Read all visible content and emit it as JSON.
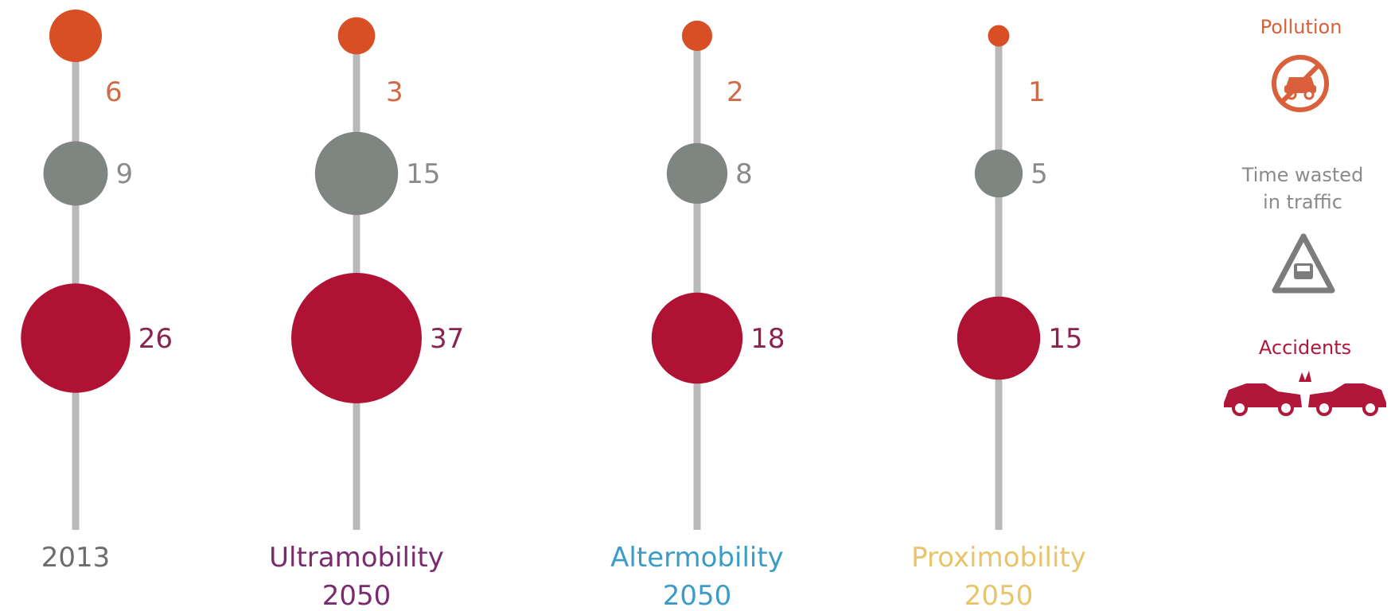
{
  "chart_data": {
    "type": "bubble",
    "metrics": [
      "Pollution",
      "Time wasted in traffic",
      "Accidents"
    ],
    "scenarios": [
      {
        "label_line1": "2013",
        "label_line2": "",
        "label_color": "#6d6d6d",
        "values": {
          "pollution": 6,
          "time_wasted": 9,
          "accidents": 26
        }
      },
      {
        "label_line1": "Ultramobility",
        "label_line2": "2050",
        "label_color": "#7a2a6e",
        "values": {
          "pollution": 3,
          "time_wasted": 15,
          "accidents": 37
        }
      },
      {
        "label_line1": "Altermobility",
        "label_line2": "2050",
        "label_color": "#3b9cc7",
        "values": {
          "pollution": 2,
          "time_wasted": 8,
          "accidents": 18
        }
      },
      {
        "label_line1": "Proximobility",
        "label_line2": "2050",
        "label_color": "#e8c56a",
        "values": {
          "pollution": 1,
          "time_wasted": 5,
          "accidents": 15
        }
      }
    ],
    "colors": {
      "pollution": "#d94f25",
      "time_wasted": "#7f8580",
      "accidents": "#b01234",
      "axis_line": "#b9b9b9"
    },
    "value_label_colors": {
      "pollution": "#d06a47",
      "time_wasted": "#8a8a8a",
      "accidents": "#8a2350"
    }
  },
  "legend": {
    "pollution": {
      "label": "Pollution",
      "color": "#d9603a",
      "icon": "no-car-icon"
    },
    "time_wasted": {
      "label_line1": "Time wasted",
      "label_line2": "in traffic",
      "color": "#8a8a8a",
      "icon": "traffic-warning-icon"
    },
    "accidents": {
      "label": "Accidents",
      "color": "#b0173a",
      "icon": "car-crash-icon"
    }
  }
}
